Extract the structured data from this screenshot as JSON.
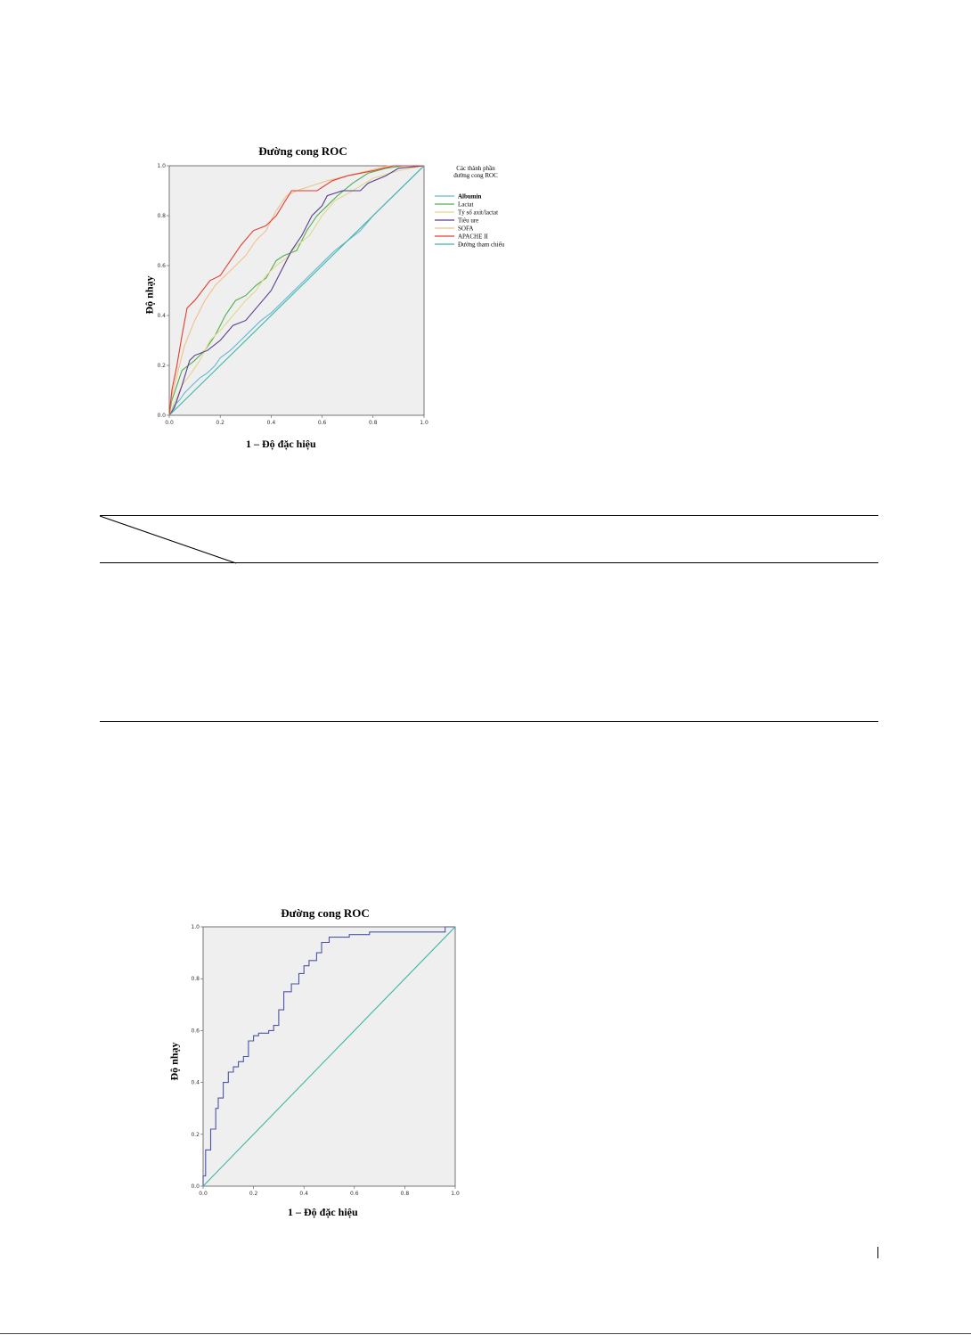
{
  "colors": {
    "albumin": "#63b8d6",
    "lactat": "#4caf50",
    "tyleaxit": "#e0d88a",
    "tieuure": "#5a3b8f",
    "sofa": "#f2c08a",
    "apache": "#e43c2f",
    "reference": "#3bb7a6",
    "single_curve": "#4a55a8",
    "plot_bg": "#efefef"
  },
  "chart_data": [
    {
      "type": "line",
      "title": "Đường cong ROC",
      "xlabel": "1 – Độ đặc hiệu",
      "ylabel": "Độ nhạy",
      "xlim": [
        0,
        1
      ],
      "ylim": [
        0,
        1
      ],
      "xticks": [
        "0.0",
        "0.2",
        "0.4",
        "0.6",
        "0.8",
        "1.0"
      ],
      "yticks": [
        "0.0",
        "0.2",
        "0.4",
        "0.6",
        "0.8",
        "1.0"
      ],
      "legend_title": "Các thành phần đường cong ROC",
      "legend_position": "right",
      "series": [
        {
          "name": "Albumin",
          "color_key": "albumin",
          "points": [
            [
              0,
              0
            ],
            [
              0.02,
              0.04
            ],
            [
              0.04,
              0.06
            ],
            [
              0.06,
              0.09
            ],
            [
              0.09,
              0.12
            ],
            [
              0.12,
              0.15
            ],
            [
              0.15,
              0.17
            ],
            [
              0.18,
              0.2
            ],
            [
              0.2,
              0.23
            ],
            [
              0.24,
              0.26
            ],
            [
              0.28,
              0.3
            ],
            [
              0.32,
              0.34
            ],
            [
              0.36,
              0.38
            ],
            [
              0.4,
              0.41
            ],
            [
              0.44,
              0.45
            ],
            [
              0.48,
              0.49
            ],
            [
              0.52,
              0.53
            ],
            [
              0.56,
              0.57
            ],
            [
              0.6,
              0.61
            ],
            [
              0.65,
              0.66
            ],
            [
              0.7,
              0.7
            ],
            [
              0.75,
              0.74
            ],
            [
              0.8,
              0.8
            ],
            [
              0.85,
              0.85
            ],
            [
              0.9,
              0.9
            ],
            [
              0.95,
              0.95
            ],
            [
              1,
              1
            ]
          ]
        },
        {
          "name": "Lactat",
          "color_key": "lactat",
          "points": [
            [
              0,
              0
            ],
            [
              0.01,
              0.06
            ],
            [
              0.03,
              0.12
            ],
            [
              0.05,
              0.18
            ],
            [
              0.1,
              0.22
            ],
            [
              0.14,
              0.26
            ],
            [
              0.18,
              0.32
            ],
            [
              0.2,
              0.36
            ],
            [
              0.22,
              0.4
            ],
            [
              0.26,
              0.46
            ],
            [
              0.3,
              0.48
            ],
            [
              0.34,
              0.52
            ],
            [
              0.38,
              0.55
            ],
            [
              0.42,
              0.62
            ],
            [
              0.45,
              0.64
            ],
            [
              0.5,
              0.66
            ],
            [
              0.54,
              0.74
            ],
            [
              0.58,
              0.8
            ],
            [
              0.62,
              0.84
            ],
            [
              0.66,
              0.88
            ],
            [
              0.72,
              0.93
            ],
            [
              0.78,
              0.97
            ],
            [
              0.85,
              0.99
            ],
            [
              0.92,
              1
            ],
            [
              1,
              1
            ]
          ]
        },
        {
          "name": "Tỷ số axit/lactat",
          "color_key": "tyleaxit",
          "points": [
            [
              0,
              0
            ],
            [
              0.02,
              0.05
            ],
            [
              0.05,
              0.12
            ],
            [
              0.08,
              0.16
            ],
            [
              0.12,
              0.22
            ],
            [
              0.16,
              0.3
            ],
            [
              0.2,
              0.34
            ],
            [
              0.25,
              0.4
            ],
            [
              0.3,
              0.46
            ],
            [
              0.34,
              0.5
            ],
            [
              0.38,
              0.56
            ],
            [
              0.42,
              0.6
            ],
            [
              0.46,
              0.63
            ],
            [
              0.5,
              0.68
            ],
            [
              0.55,
              0.72
            ],
            [
              0.6,
              0.8
            ],
            [
              0.65,
              0.86
            ],
            [
              0.72,
              0.9
            ],
            [
              0.8,
              0.95
            ],
            [
              0.9,
              0.98
            ],
            [
              1,
              1
            ]
          ]
        },
        {
          "name": "Tiêu ure",
          "color_key": "tieuure",
          "points": [
            [
              0,
              0
            ],
            [
              0.02,
              0.03
            ],
            [
              0.05,
              0.12
            ],
            [
              0.08,
              0.22
            ],
            [
              0.1,
              0.24
            ],
            [
              0.15,
              0.26
            ],
            [
              0.2,
              0.3
            ],
            [
              0.25,
              0.36
            ],
            [
              0.3,
              0.38
            ],
            [
              0.35,
              0.44
            ],
            [
              0.4,
              0.5
            ],
            [
              0.45,
              0.6
            ],
            [
              0.48,
              0.66
            ],
            [
              0.52,
              0.72
            ],
            [
              0.56,
              0.8
            ],
            [
              0.6,
              0.84
            ],
            [
              0.62,
              0.88
            ],
            [
              0.68,
              0.9
            ],
            [
              0.75,
              0.9
            ],
            [
              0.78,
              0.93
            ],
            [
              0.85,
              0.96
            ],
            [
              0.9,
              0.99
            ],
            [
              1,
              1
            ]
          ]
        },
        {
          "name": "SOFA",
          "color_key": "sofa",
          "points": [
            [
              0,
              0
            ],
            [
              0.01,
              0.08
            ],
            [
              0.03,
              0.16
            ],
            [
              0.06,
              0.28
            ],
            [
              0.1,
              0.38
            ],
            [
              0.14,
              0.46
            ],
            [
              0.18,
              0.52
            ],
            [
              0.22,
              0.56
            ],
            [
              0.26,
              0.6
            ],
            [
              0.3,
              0.64
            ],
            [
              0.34,
              0.7
            ],
            [
              0.38,
              0.74
            ],
            [
              0.42,
              0.82
            ],
            [
              0.46,
              0.88
            ],
            [
              0.5,
              0.9
            ],
            [
              0.56,
              0.92
            ],
            [
              0.62,
              0.94
            ],
            [
              0.7,
              0.96
            ],
            [
              0.78,
              0.98
            ],
            [
              0.86,
              1
            ],
            [
              1,
              1
            ]
          ]
        },
        {
          "name": "APACHE II",
          "color_key": "apache",
          "points": [
            [
              0,
              0
            ],
            [
              0.01,
              0.1
            ],
            [
              0.03,
              0.2
            ],
            [
              0.05,
              0.32
            ],
            [
              0.07,
              0.43
            ],
            [
              0.1,
              0.46
            ],
            [
              0.13,
              0.5
            ],
            [
              0.16,
              0.54
            ],
            [
              0.2,
              0.56
            ],
            [
              0.24,
              0.62
            ],
            [
              0.28,
              0.68
            ],
            [
              0.33,
              0.74
            ],
            [
              0.38,
              0.76
            ],
            [
              0.42,
              0.8
            ],
            [
              0.48,
              0.9
            ],
            [
              0.52,
              0.9
            ],
            [
              0.58,
              0.9
            ],
            [
              0.64,
              0.94
            ],
            [
              0.7,
              0.96
            ],
            [
              0.8,
              0.98
            ],
            [
              0.88,
              1
            ],
            [
              1,
              1
            ]
          ]
        },
        {
          "name": "Đường tham chiếu",
          "color_key": "reference",
          "points": [
            [
              0,
              0
            ],
            [
              1,
              1
            ]
          ]
        }
      ]
    },
    {
      "type": "line",
      "title": "Đường cong ROC",
      "xlabel": "1 – Độ đặc hiệu",
      "ylabel": "Độ nhạy",
      "xlim": [
        0,
        1
      ],
      "ylim": [
        0,
        1
      ],
      "xticks": [
        "0.0",
        "0.2",
        "0.4",
        "0.6",
        "0.8",
        "1.0"
      ],
      "yticks": [
        "0.0",
        "0.2",
        "0.4",
        "0.6",
        "0.8",
        "1.0"
      ],
      "series": [
        {
          "color_key": "single_curve",
          "points": [
            [
              0,
              0
            ],
            [
              0,
              0.04
            ],
            [
              0.01,
              0.04
            ],
            [
              0.01,
              0.14
            ],
            [
              0.03,
              0.14
            ],
            [
              0.03,
              0.22
            ],
            [
              0.05,
              0.22
            ],
            [
              0.05,
              0.3
            ],
            [
              0.06,
              0.3
            ],
            [
              0.06,
              0.34
            ],
            [
              0.08,
              0.34
            ],
            [
              0.08,
              0.4
            ],
            [
              0.1,
              0.4
            ],
            [
              0.1,
              0.44
            ],
            [
              0.12,
              0.44
            ],
            [
              0.12,
              0.46
            ],
            [
              0.14,
              0.46
            ],
            [
              0.14,
              0.48
            ],
            [
              0.16,
              0.48
            ],
            [
              0.16,
              0.5
            ],
            [
              0.18,
              0.5
            ],
            [
              0.18,
              0.56
            ],
            [
              0.2,
              0.56
            ],
            [
              0.2,
              0.58
            ],
            [
              0.22,
              0.58
            ],
            [
              0.22,
              0.59
            ],
            [
              0.26,
              0.59
            ],
            [
              0.26,
              0.6
            ],
            [
              0.28,
              0.6
            ],
            [
              0.28,
              0.62
            ],
            [
              0.3,
              0.62
            ],
            [
              0.3,
              0.68
            ],
            [
              0.32,
              0.68
            ],
            [
              0.32,
              0.75
            ],
            [
              0.35,
              0.75
            ],
            [
              0.35,
              0.78
            ],
            [
              0.38,
              0.78
            ],
            [
              0.38,
              0.82
            ],
            [
              0.4,
              0.82
            ],
            [
              0.4,
              0.85
            ],
            [
              0.42,
              0.85
            ],
            [
              0.42,
              0.87
            ],
            [
              0.45,
              0.87
            ],
            [
              0.45,
              0.9
            ],
            [
              0.47,
              0.9
            ],
            [
              0.47,
              0.94
            ],
            [
              0.5,
              0.94
            ],
            [
              0.5,
              0.96
            ],
            [
              0.58,
              0.96
            ],
            [
              0.58,
              0.97
            ],
            [
              0.66,
              0.97
            ],
            [
              0.66,
              0.98
            ],
            [
              0.96,
              0.98
            ],
            [
              0.96,
              1
            ],
            [
              1,
              1
            ]
          ]
        },
        {
          "color_key": "reference",
          "points": [
            [
              0,
              0
            ],
            [
              1,
              1
            ]
          ]
        }
      ]
    }
  ]
}
